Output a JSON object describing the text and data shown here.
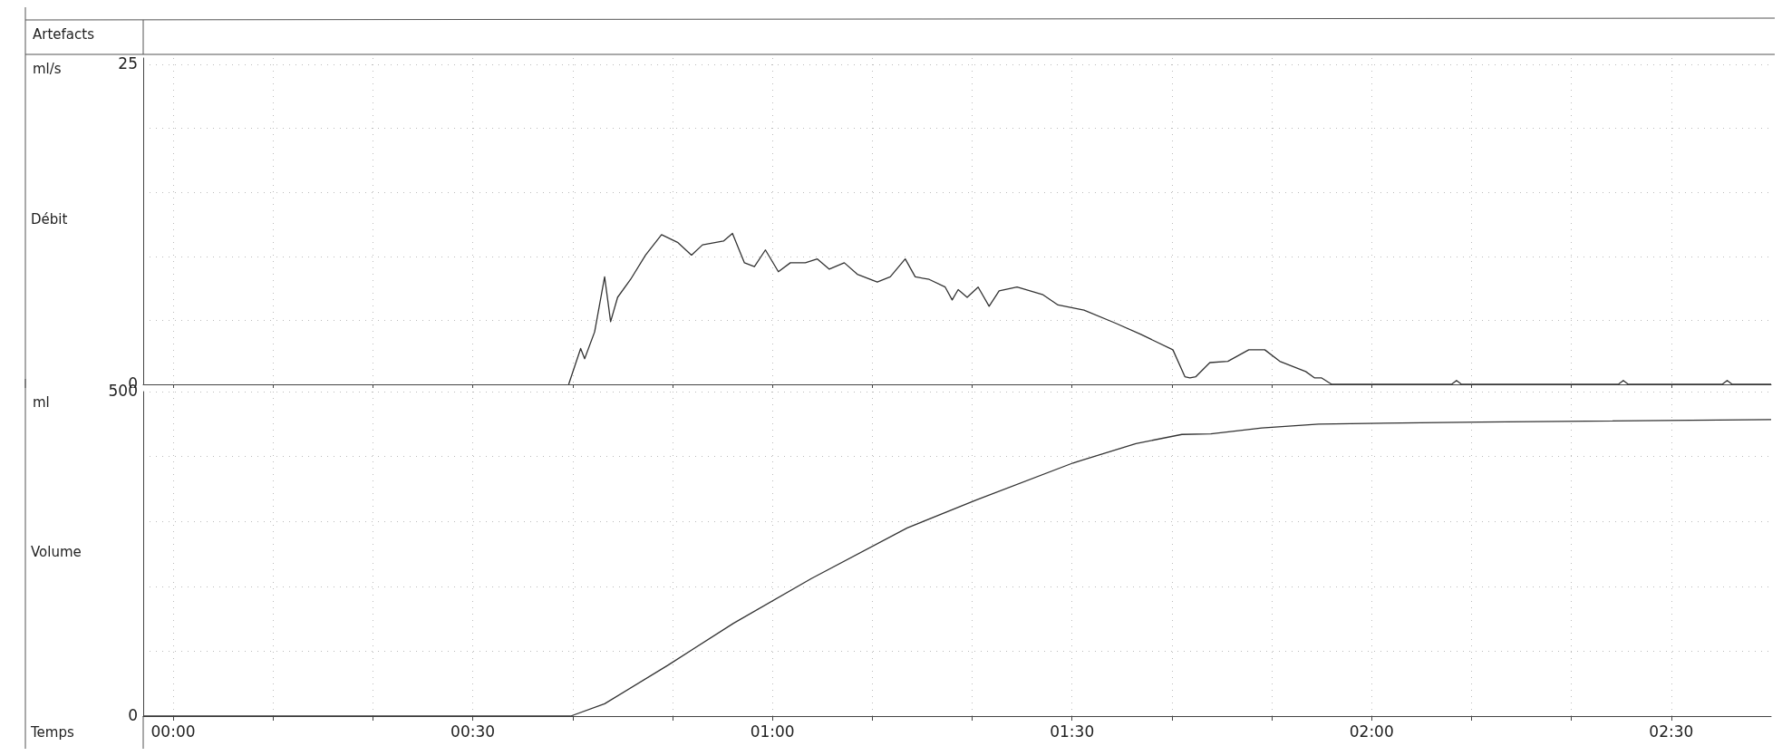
{
  "chart_data": [
    {
      "type": "line",
      "ylabel": "Débit",
      "annotations": [
        "Artefacts",
        "ml/s"
      ],
      "x": [
        39.6,
        40.8,
        41.2,
        42.2,
        43.2,
        43.8,
        44.5,
        45.8,
        47.3,
        48.9,
        50.5,
        51.9,
        53.0,
        55.1,
        56.0,
        57.2,
        58.2,
        59.3,
        60.6,
        61.8,
        63.3,
        64.5,
        65.7,
        67.2,
        68.5,
        70.5,
        71.8,
        73.3,
        74.3,
        75.7,
        77.3,
        78.0,
        78.6,
        79.5,
        80.6,
        81.7,
        82.7,
        84.5,
        87.1,
        88.6,
        91.2,
        94.3,
        96.9,
        100.1,
        101.3,
        101.8,
        102.4,
        103.8,
        105.6,
        107.7,
        109.3,
        110.8,
        113.4,
        114.3,
        115.0,
        116.0,
        128.0,
        128.5,
        129.0,
        144.7,
        145.2,
        145.7,
        155.1,
        155.6,
        156.1,
        160
      ],
      "values": [
        0,
        2.8,
        2.0,
        4.1,
        8.4,
        4.9,
        6.8,
        8.2,
        10.1,
        11.7,
        11.1,
        10.1,
        10.9,
        11.2,
        11.8,
        9.5,
        9.2,
        10.5,
        8.8,
        9.5,
        9.5,
        9.8,
        9.0,
        9.5,
        8.6,
        8.0,
        8.4,
        9.8,
        8.4,
        8.2,
        7.6,
        6.6,
        7.4,
        6.8,
        7.6,
        6.1,
        7.3,
        7.6,
        7.0,
        6.2,
        5.8,
        4.8,
        3.9,
        2.7,
        0.6,
        0.5,
        0.6,
        1.7,
        1.8,
        2.7,
        2.7,
        1.8,
        1.0,
        0.5,
        0.5,
        0,
        0,
        0.3,
        0,
        0,
        0.3,
        0,
        0,
        0.3,
        0,
        0
      ],
      "color": "#333333",
      "marker": "none",
      "line_style": "solid",
      "xlim": [
        -3,
        160
      ],
      "xticks": [
        {
          "value": 0,
          "label": null
        },
        {
          "value": 10,
          "label": null
        },
        {
          "value": 20,
          "label": null
        },
        {
          "value": 30,
          "label": null
        },
        {
          "value": 40,
          "label": null
        },
        {
          "value": 50,
          "label": null
        },
        {
          "value": 60,
          "label": null
        },
        {
          "value": 70,
          "label": null
        },
        {
          "value": 80,
          "label": null
        },
        {
          "value": 90,
          "label": null
        },
        {
          "value": 100,
          "label": null
        },
        {
          "value": 110,
          "label": null
        },
        {
          "value": 120,
          "label": null
        },
        {
          "value": 130,
          "label": null
        },
        {
          "value": 140,
          "label": null
        },
        {
          "value": 150,
          "label": null
        }
      ],
      "ylim": [
        0,
        25.5
      ],
      "yticks": [
        0,
        {
          "value": 5,
          "label": null
        },
        {
          "value": 10,
          "label": null
        },
        {
          "value": 15,
          "label": null
        },
        {
          "value": 20,
          "label": null
        },
        25
      ],
      "grid": true,
      "tick_labels": "y"
    },
    {
      "type": "line",
      "ylabel": "Volume",
      "xlabel": "Temps",
      "annotations": [
        "ml"
      ],
      "x": [
        -3,
        39.8,
        43.2,
        49.5,
        56.1,
        63.9,
        73.5,
        80.4,
        90.1,
        96.4,
        101.0,
        103.9,
        109.0,
        114.7,
        130.8,
        160
      ],
      "values": [
        0,
        0,
        19,
        78,
        143,
        212,
        290,
        333,
        390,
        420,
        434,
        435,
        444,
        450,
        453,
        457
      ],
      "color": "#333333",
      "marker": "none",
      "line_style": "solid",
      "xlim": [
        -3,
        160
      ],
      "xticks": [
        {
          "value": 0,
          "label": "00:00"
        },
        {
          "value": 10,
          "label": null
        },
        {
          "value": 20,
          "label": null
        },
        {
          "value": 30,
          "label": "00:30"
        },
        {
          "value": 40,
          "label": null
        },
        {
          "value": 50,
          "label": null
        },
        {
          "value": 60,
          "label": "01:00"
        },
        {
          "value": 70,
          "label": null
        },
        {
          "value": 80,
          "label": null
        },
        {
          "value": 90,
          "label": "01:30"
        },
        {
          "value": 100,
          "label": null
        },
        {
          "value": 110,
          "label": null
        },
        {
          "value": 120,
          "label": "02:00"
        },
        {
          "value": 130,
          "label": null
        },
        {
          "value": 140,
          "label": null
        },
        {
          "value": 150,
          "label": "02:30"
        }
      ],
      "ylim": [
        0,
        500
      ],
      "yticks": [
        0,
        {
          "value": 100,
          "label": null
        },
        {
          "value": 200,
          "label": null
        },
        {
          "value": 300,
          "label": null
        },
        {
          "value": 400,
          "label": null
        },
        500
      ],
      "grid": true
    }
  ]
}
